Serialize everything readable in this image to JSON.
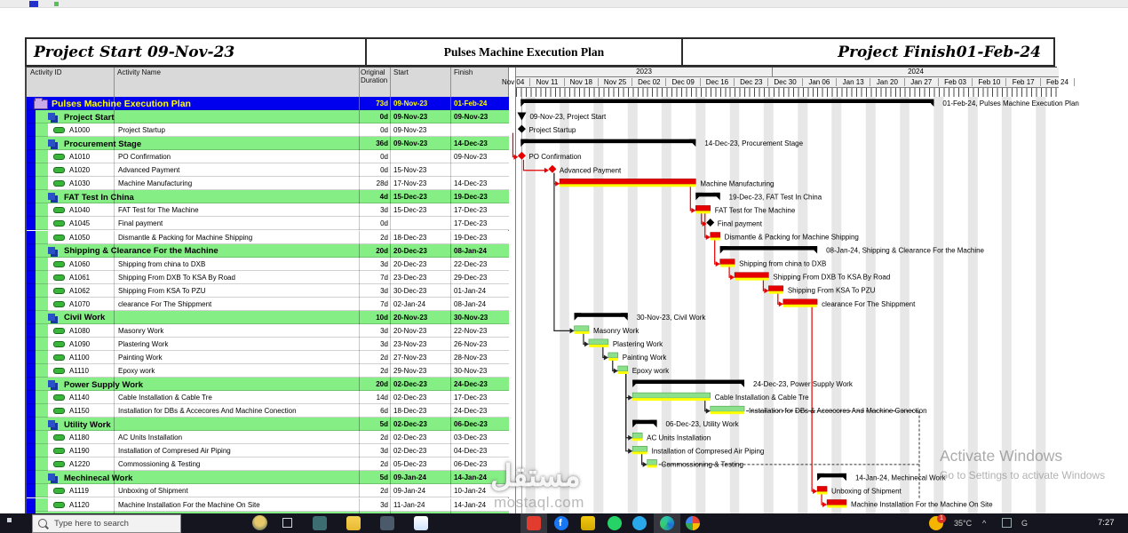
{
  "band": {
    "left": "Project Start 09-Nov-23",
    "center": "Pulses Machine Execution Plan",
    "right": "Project Finish01-Feb-24"
  },
  "columns": [
    "Activity ID",
    "Activity Name",
    "Original Duration",
    "Start",
    "Finish"
  ],
  "timeline": {
    "years": [
      "2023",
      "2024"
    ],
    "weeks": [
      "Nov 04",
      "Nov 11",
      "Nov 18",
      "Nov 25",
      "Dec 02",
      "Dec 09",
      "Dec 16",
      "Dec 23",
      "Dec 30",
      "Jan 06",
      "Jan 13",
      "Jan 20",
      "Jan 27",
      "Feb 03",
      "Feb 10",
      "Feb 17",
      "Feb 24"
    ]
  },
  "rows": [
    {
      "type": "project",
      "id": "",
      "name": "Pulses Machine Execution Plan",
      "dur": "73d",
      "start": "09-Nov-23",
      "finish": "01-Feb-24"
    },
    {
      "type": "wbs",
      "id": "",
      "name": "Project Start",
      "dur": "0d",
      "start": "09-Nov-23",
      "finish": "09-Nov-23"
    },
    {
      "type": "act",
      "id": "A1000",
      "name": "Project Startup",
      "dur": "0d",
      "start": "09-Nov-23",
      "finish": ""
    },
    {
      "type": "wbs",
      "id": "",
      "name": "Procurement Stage",
      "dur": "36d",
      "start": "09-Nov-23",
      "finish": "14-Dec-23"
    },
    {
      "type": "act",
      "id": "A1010",
      "name": "PO Confirmation",
      "dur": "0d",
      "start": "",
      "finish": "09-Nov-23"
    },
    {
      "type": "act",
      "id": "A1020",
      "name": "Advanced Payment",
      "dur": "0d",
      "start": "15-Nov-23",
      "finish": ""
    },
    {
      "type": "act",
      "id": "A1030",
      "name": "Machine Manufacturing",
      "dur": "28d",
      "start": "17-Nov-23",
      "finish": "14-Dec-23"
    },
    {
      "type": "wbs",
      "id": "",
      "name": "FAT Test In China",
      "dur": "4d",
      "start": "15-Dec-23",
      "finish": "19-Dec-23"
    },
    {
      "type": "act",
      "id": "A1040",
      "name": "FAT Test for The Machine",
      "dur": "3d",
      "start": "15-Dec-23",
      "finish": "17-Dec-23"
    },
    {
      "type": "act",
      "id": "A1045",
      "name": "Final payment",
      "dur": "0d",
      "start": "",
      "finish": "17-Dec-23"
    },
    {
      "type": "act",
      "id": "A1050",
      "name": "Dismantle & Packing for Machine Shipping",
      "dur": "2d",
      "start": "18-Dec-23",
      "finish": "19-Dec-23"
    },
    {
      "type": "wbs",
      "id": "",
      "name": "Shipping & Clearance For the Machine",
      "dur": "20d",
      "start": "20-Dec-23",
      "finish": "08-Jan-24"
    },
    {
      "type": "act",
      "id": "A1060",
      "name": "Shipping from china to DXB",
      "dur": "3d",
      "start": "20-Dec-23",
      "finish": "22-Dec-23"
    },
    {
      "type": "act",
      "id": "A1061",
      "name": "Shipping From DXB To KSA By Road",
      "dur": "7d",
      "start": "23-Dec-23",
      "finish": "29-Dec-23"
    },
    {
      "type": "act",
      "id": "A1062",
      "name": "Shipping From KSA To PZU",
      "dur": "3d",
      "start": "30-Dec-23",
      "finish": "01-Jan-24"
    },
    {
      "type": "act",
      "id": "A1070",
      "name": "clearance For The Shippment",
      "dur": "7d",
      "start": "02-Jan-24",
      "finish": "08-Jan-24"
    },
    {
      "type": "wbs",
      "id": "",
      "name": "Civil Work",
      "dur": "10d",
      "start": "20-Nov-23",
      "finish": "30-Nov-23"
    },
    {
      "type": "act",
      "id": "A1080",
      "name": "Masonry Work",
      "dur": "3d",
      "start": "20-Nov-23",
      "finish": "22-Nov-23"
    },
    {
      "type": "act",
      "id": "A1090",
      "name": "Plastering Work",
      "dur": "3d",
      "start": "23-Nov-23",
      "finish": "26-Nov-23"
    },
    {
      "type": "act",
      "id": "A1100",
      "name": "Painting Work",
      "dur": "2d",
      "start": "27-Nov-23",
      "finish": "28-Nov-23"
    },
    {
      "type": "act",
      "id": "A1110",
      "name": "Epoxy work",
      "dur": "2d",
      "start": "29-Nov-23",
      "finish": "30-Nov-23"
    },
    {
      "type": "wbs",
      "id": "",
      "name": "Power Supply Work",
      "dur": "20d",
      "start": "02-Dec-23",
      "finish": "24-Dec-23"
    },
    {
      "type": "act",
      "id": "A1140",
      "name": "Cable  Installation & Cable Tre",
      "dur": "14d",
      "start": "02-Dec-23",
      "finish": "17-Dec-23"
    },
    {
      "type": "act",
      "id": "A1150",
      "name": "Installation for DBs & Accecores And Machine Conection",
      "dur": "6d",
      "start": "18-Dec-23",
      "finish": "24-Dec-23"
    },
    {
      "type": "wbs",
      "id": "",
      "name": "Utility Work",
      "dur": "5d",
      "start": "02-Dec-23",
      "finish": "06-Dec-23"
    },
    {
      "type": "act",
      "id": "A1180",
      "name": "AC Units Installation",
      "dur": "2d",
      "start": "02-Dec-23",
      "finish": "03-Dec-23"
    },
    {
      "type": "act",
      "id": "A1190",
      "name": "Installation of Compresed Air Piping",
      "dur": "3d",
      "start": "02-Dec-23",
      "finish": "04-Dec-23"
    },
    {
      "type": "act",
      "id": "A1220",
      "name": "Commossioning & Testing",
      "dur": "2d",
      "start": "05-Dec-23",
      "finish": "06-Dec-23"
    },
    {
      "type": "wbs",
      "id": "",
      "name": "Mechinecal Work",
      "dur": "5d",
      "start": "09-Jan-24",
      "finish": "14-Jan-24"
    },
    {
      "type": "act",
      "id": "A1119",
      "name": "Unboxing of Shipment",
      "dur": "2d",
      "start": "09-Jan-24",
      "finish": "10-Jan-24"
    },
    {
      "type": "act",
      "id": "A1120",
      "name": "Machine Installation For the Machine On Site",
      "dur": "3d",
      "start": "11-Jan-24",
      "finish": "14-Jan-24"
    }
  ],
  "chart_data": {
    "type": "gantt",
    "day_zero_date": "04-Nov-23",
    "colors": {
      "critical": "#ee0000",
      "normal": "#8ce08c",
      "summary": "#000000",
      "progress_stripe": "#ffff00",
      "data_date_line": "#9a9aee"
    },
    "tasks": [
      {
        "row": 0,
        "kind": "proj",
        "color": "black",
        "s": 5,
        "e": 90,
        "label": "01-Feb-24, Pulses Machine Execution Plan"
      },
      {
        "row": 1,
        "kind": "tri",
        "color": "black",
        "s": 5.2,
        "e": 5.2,
        "label": "09-Nov-23, Project Start"
      },
      {
        "row": 2,
        "kind": "ms",
        "color": "black",
        "s": 5.2,
        "e": 5.2,
        "label": "Project Startup"
      },
      {
        "row": 3,
        "kind": "sum",
        "color": "black",
        "s": 5,
        "e": 41,
        "label": "14-Dec-23, Procurement Stage"
      },
      {
        "row": 4,
        "kind": "ms",
        "color": "red",
        "s": 5.2,
        "e": 5.2,
        "label": "PO Confirmation"
      },
      {
        "row": 5,
        "kind": "ms",
        "color": "red",
        "s": 11.5,
        "e": 11.5,
        "label": "Advanced Payment"
      },
      {
        "row": 6,
        "kind": "task",
        "color": "red",
        "s": 13,
        "e": 41,
        "label": "Machine Manufacturing"
      },
      {
        "row": 7,
        "kind": "sum",
        "color": "black",
        "s": 41,
        "e": 46,
        "label": "19-Dec-23, FAT Test In China"
      },
      {
        "row": 8,
        "kind": "task",
        "color": "red",
        "s": 41,
        "e": 44,
        "label": "FAT Test for The Machine"
      },
      {
        "row": 9,
        "kind": "ms",
        "color": "black",
        "s": 44,
        "e": 44,
        "label": "Final payment"
      },
      {
        "row": 10,
        "kind": "task",
        "color": "red",
        "s": 44,
        "e": 46,
        "label": "Dismantle & Packing for Machine Shipping"
      },
      {
        "row": 11,
        "kind": "sum",
        "color": "black",
        "s": 46,
        "e": 66,
        "label": "08-Jan-24, Shipping & Clearance For the Machine"
      },
      {
        "row": 12,
        "kind": "task",
        "color": "red",
        "s": 46,
        "e": 49,
        "label": "Shipping from china to DXB"
      },
      {
        "row": 13,
        "kind": "task",
        "color": "red",
        "s": 49,
        "e": 56,
        "label": "Shipping From DXB To KSA By Road"
      },
      {
        "row": 14,
        "kind": "task",
        "color": "red",
        "s": 56,
        "e": 59,
        "label": "Shipping From KSA To PZU"
      },
      {
        "row": 15,
        "kind": "task",
        "color": "red",
        "s": 59,
        "e": 66,
        "label": "clearance For The Shippment"
      },
      {
        "row": 16,
        "kind": "sum",
        "color": "black",
        "s": 16,
        "e": 27,
        "label": "30-Nov-23, Civil Work"
      },
      {
        "row": 17,
        "kind": "task",
        "color": "green",
        "s": 16,
        "e": 19,
        "label": "Masonry Work"
      },
      {
        "row": 18,
        "kind": "task",
        "color": "green",
        "s": 19,
        "e": 23,
        "label": "Plastering Work"
      },
      {
        "row": 19,
        "kind": "task",
        "color": "green",
        "s": 23,
        "e": 25,
        "label": "Painting Work"
      },
      {
        "row": 20,
        "kind": "task",
        "color": "green",
        "s": 25,
        "e": 27,
        "label": "Epoxy work"
      },
      {
        "row": 21,
        "kind": "sum",
        "color": "black",
        "s": 28,
        "e": 51,
        "label": "24-Dec-23, Power Supply Work"
      },
      {
        "row": 22,
        "kind": "task",
        "color": "green",
        "s": 28,
        "e": 44,
        "label": "Cable  Installation & Cable Tre"
      },
      {
        "row": 23,
        "kind": "task",
        "color": "green",
        "s": 44,
        "e": 51,
        "label": "Installation for DBs & Accecores And Machine Conection"
      },
      {
        "row": 24,
        "kind": "sum",
        "color": "black",
        "s": 28,
        "e": 33,
        "label": "06-Dec-23, Utility Work"
      },
      {
        "row": 25,
        "kind": "task",
        "color": "green",
        "s": 28,
        "e": 30,
        "label": "AC Units Installation"
      },
      {
        "row": 26,
        "kind": "task",
        "color": "green",
        "s": 28,
        "e": 31,
        "label": "Installation of Compresed Air Piping"
      },
      {
        "row": 27,
        "kind": "task",
        "color": "green",
        "s": 31,
        "e": 33,
        "label": "Commossioning & Testing"
      },
      {
        "row": 28,
        "kind": "sum",
        "color": "black",
        "s": 66,
        "e": 72,
        "label": "14-Jan-24, Mechinecal Work"
      },
      {
        "row": 29,
        "kind": "task",
        "color": "red",
        "s": 66,
        "e": 68,
        "label": "Unboxing of Shipment"
      },
      {
        "row": 30,
        "kind": "task",
        "color": "red",
        "s": 68,
        "e": 72,
        "label": "Machine Installation For the Machine On Site"
      }
    ],
    "links": [
      {
        "f": 2,
        "t": 4,
        "c": "red"
      },
      {
        "f": 4,
        "t": 5,
        "c": "red"
      },
      {
        "f": 5,
        "t": 6,
        "c": "red"
      },
      {
        "f": 6,
        "t": 8,
        "c": "red"
      },
      {
        "f": 8,
        "t": 9,
        "c": "red"
      },
      {
        "f": 8,
        "t": 10,
        "c": "red"
      },
      {
        "f": 10,
        "t": 12,
        "c": "red"
      },
      {
        "f": 12,
        "t": 13,
        "c": "red"
      },
      {
        "f": 13,
        "t": 14,
        "c": "red"
      },
      {
        "f": 14,
        "t": 15,
        "c": "red"
      },
      {
        "f": 15,
        "t": 29,
        "c": "red"
      },
      {
        "f": 29,
        "t": 30,
        "c": "red"
      },
      {
        "f": 5,
        "t": 17,
        "c": "black"
      },
      {
        "f": 17,
        "t": 18,
        "c": "black"
      },
      {
        "f": 18,
        "t": 19,
        "c": "black"
      },
      {
        "f": 19,
        "t": 20,
        "c": "black"
      },
      {
        "f": 20,
        "t": 22,
        "c": "black"
      },
      {
        "f": 22,
        "t": 23,
        "c": "black"
      },
      {
        "f": 20,
        "t": 25,
        "c": "black"
      },
      {
        "f": 20,
        "t": 26,
        "c": "black"
      },
      {
        "f": 26,
        "t": 27,
        "c": "black"
      }
    ],
    "dashed_links": [
      {
        "from": 23,
        "via_day": 87,
        "down_to_row": 29
      },
      {
        "from": 27,
        "via_day": 87,
        "down_to_row": null
      }
    ]
  },
  "watermarks": {
    "arabic": "مستقل",
    "site": "mostaql.com",
    "activate_1": "Activate Windows",
    "activate_2": "Go to Settings to activate Windows"
  },
  "taskbar": {
    "search_placeholder": "Type here to search",
    "badge": "1",
    "temp": "35°C",
    "time": "7:27"
  }
}
